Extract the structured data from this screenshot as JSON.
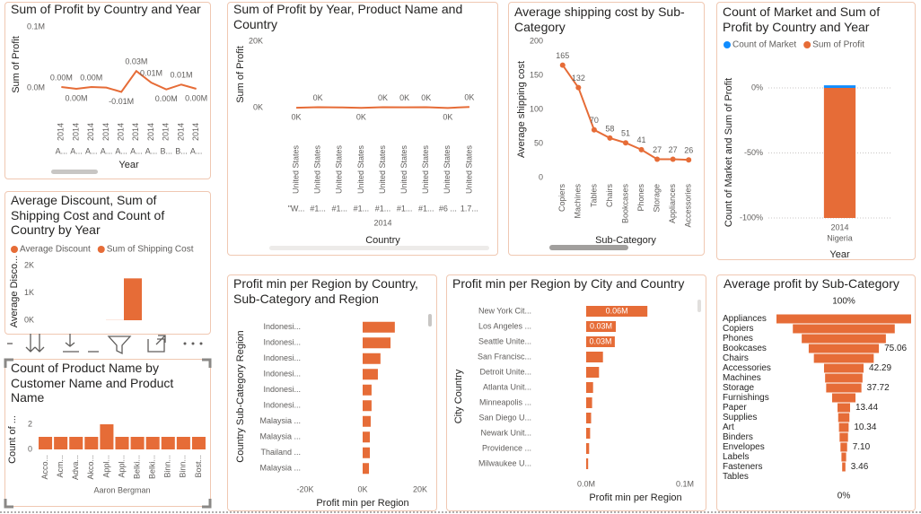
{
  "chart_data": [
    {
      "type": "line",
      "title": "Sum of Profit by Country and Year",
      "y_label": "Sum of Profit",
      "x_label": "Year",
      "categories": [
        "2014",
        "2014",
        "2014",
        "2014",
        "2014",
        "2014",
        "2014",
        "2014",
        "2014",
        "2014"
      ],
      "categories_2": [
        "A...",
        "A...",
        "A...",
        "A...",
        "A...",
        "A...",
        "A...",
        "B...",
        "B...",
        "A..."
      ],
      "values": [
        2000,
        -1000,
        2000,
        1000,
        -6000,
        28000,
        9000,
        -2000,
        6000,
        -1000
      ],
      "value_labels": [
        "0.00M",
        "0.00M",
        "0.00M",
        null,
        "-0.01M",
        "0.03M",
        "0.01M",
        "0.00M",
        "0.01M",
        "0.00M"
      ],
      "color": "#e66c37",
      "ylim": [
        -20000,
        100000
      ],
      "yticks": [
        {
          "value": 0,
          "label": "0.0M"
        },
        {
          "value": 100000,
          "label": "0.1M"
        }
      ]
    },
    {
      "type": "line",
      "title": "Sum of Profit by Year, Product Name and Country",
      "y_label": "Sum of Profit",
      "x_label": "Country",
      "categories": [
        "United States",
        "United States",
        "United States",
        "United States",
        "United States",
        "United States",
        "United States",
        "United States",
        "United States"
      ],
      "categories_2": [
        "\"W...",
        "#1...",
        "#1...",
        "#1...",
        "#1...",
        "#1...",
        "#1...",
        "#6 ...",
        "1.7..."
      ],
      "category_group": "2014",
      "values": [
        -50,
        120,
        80,
        -60,
        150,
        100,
        130,
        -90,
        200
      ],
      "value_labels": [
        "0K",
        "0K",
        null,
        "0K",
        "0K",
        "0K",
        "0K",
        "0K",
        "0K"
      ],
      "color": "#e66c37",
      "ylim": [
        0,
        20000
      ],
      "yticks": [
        {
          "value": 0,
          "label": "0K"
        },
        {
          "value": 20000,
          "label": "20K"
        }
      ]
    },
    {
      "type": "line",
      "title": "Average shipping cost by Sub-Category",
      "y_label": "Average shipping cost",
      "x_label": "Sub-Category",
      "categories": [
        "Copiers",
        "Machines",
        "Tables",
        "Chairs",
        "Bookcases",
        "Phones",
        "Storage",
        "Appliances",
        "Accessories"
      ],
      "values": [
        165,
        132,
        70,
        58,
        51,
        41,
        27,
        27,
        26
      ],
      "data_labels": true,
      "markers": true,
      "color": "#e66c37",
      "ylim": [
        0,
        200
      ],
      "yticks": [
        0,
        50,
        100,
        150,
        200
      ]
    },
    {
      "type": "bar",
      "title": "Count of Market and Sum of Profit by Country and Year",
      "y_label": "Count of Market and Sum of Profit",
      "x_label": "Year",
      "categories": [
        "2014"
      ],
      "categories_2": [
        "Nigeria"
      ],
      "stacked": true,
      "legend": "top-left",
      "grid": true,
      "series": [
        {
          "name": "Count of Market",
          "color": "#118dff",
          "values": [
            2
          ]
        },
        {
          "name": "Sum of Profit",
          "color": "#e66c37",
          "values": [
            -100
          ]
        }
      ],
      "ylim": [
        -100,
        20
      ],
      "yticks": [
        {
          "value": 0,
          "label": "0%"
        },
        {
          "value": -50,
          "label": "-50%"
        },
        {
          "value": -100,
          "label": "-100%"
        }
      ]
    },
    {
      "type": "bar",
      "title": "Average Discount, Sum of Shipping Cost and Count of Country by Year",
      "y_label": "Average Disco...",
      "legend": "top-left",
      "series": [
        {
          "name": "Average Discount",
          "color": "#e66c37",
          "values": [
            5
          ]
        },
        {
          "name": "Sum of Shipping Cost",
          "color": "#e66c37",
          "values": [
            1530
          ]
        }
      ],
      "ylim": [
        0,
        2000
      ],
      "yticks": [
        {
          "value": 0,
          "label": "0K"
        },
        {
          "value": 1000,
          "label": "1K"
        },
        {
          "value": 2000,
          "label": "2K"
        }
      ]
    },
    {
      "type": "bar",
      "title": "Count of Product Name by Customer Name and Product Name",
      "y_label": "Count of ...",
      "categories": [
        "Acco...",
        "Acm...",
        "Adva...",
        "Akco...",
        "Appl...",
        "Appl...",
        "Belki...",
        "Belki...",
        "Binn...",
        "Binn...",
        "Bost..."
      ],
      "category_group": "Aaron Bergman",
      "values": [
        1,
        1,
        1,
        1,
        2,
        1,
        1,
        1,
        1,
        1,
        1
      ],
      "color": "#e66c37",
      "ylim": [
        0,
        2
      ],
      "yticks": [
        0,
        2
      ]
    },
    {
      "type": "hbar",
      "title": "Profit min per Region by Country, Sub-Category and Region",
      "x_label": "Profit min per Region",
      "y_label": "Country Sub-Category Region",
      "categories": [
        "Indonesi...",
        "Indonesi...",
        "Indonesi...",
        "Indonesi...",
        "Indonesi...",
        "Indonesi...",
        "Malaysia ...",
        "Malaysia ...",
        "Thailand ...",
        "Malaysia ..."
      ],
      "values": [
        11200,
        9700,
        6200,
        5300,
        3100,
        3100,
        2800,
        2500,
        2500,
        2200
      ],
      "color": "#e66c37",
      "xlim": [
        -20000,
        20000
      ],
      "xticks": [
        {
          "value": -20000,
          "label": "-20K"
        },
        {
          "value": 0,
          "label": "0K"
        },
        {
          "value": 20000,
          "label": "20K"
        }
      ]
    },
    {
      "type": "hbar",
      "title": "Profit min per Region by City and Country",
      "x_label": "Profit min per Region",
      "y_label": "City Country",
      "categories": [
        "New York Cit...",
        "Los Angeles ...",
        "Seattle Unite...",
        "San Francisc...",
        "Detroit Unite...",
        "Atlanta Unit...",
        "Minneapolis ...",
        "San Diego U...",
        "Newark Unit...",
        "Providence ...",
        "Milwaukee U..."
      ],
      "values": [
        62000,
        30000,
        29000,
        17000,
        13000,
        7000,
        6000,
        5000,
        4000,
        3000,
        2000
      ],
      "value_labels": [
        "0.06M",
        "0.03M",
        "0.03M",
        null,
        null,
        null,
        null,
        null,
        null,
        null,
        null
      ],
      "color": "#e66c37",
      "xlim": [
        0,
        100000
      ],
      "xticks": [
        {
          "value": 0,
          "label": "0.0M"
        },
        {
          "value": 100000,
          "label": "0.1M"
        }
      ]
    },
    {
      "type": "funnel",
      "title": "Average profit by Sub-Category",
      "categories": [
        "Appliances",
        "Copiers",
        "Phones",
        "Bookcases",
        "Chairs",
        "Accessories",
        "Machines",
        "Storage",
        "Furnishings",
        "Paper",
        "Supplies",
        "Art",
        "Binders",
        "Envelopes",
        "Labels",
        "Fasteners",
        "Tables"
      ],
      "values": [
        144,
        109,
        90,
        75.06,
        64,
        42.29,
        40,
        37.72,
        25,
        13.44,
        12,
        10.34,
        9,
        7.1,
        5,
        3.46,
        0
      ],
      "value_labels": [
        null,
        null,
        null,
        "75.06",
        null,
        "42.29",
        null,
        "37.72",
        null,
        "13.44",
        null,
        "10.34",
        null,
        "7.10",
        null,
        "3.46",
        null
      ],
      "top_label": "100%",
      "bottom_label": "0%",
      "color": "#e66c37"
    }
  ]
}
